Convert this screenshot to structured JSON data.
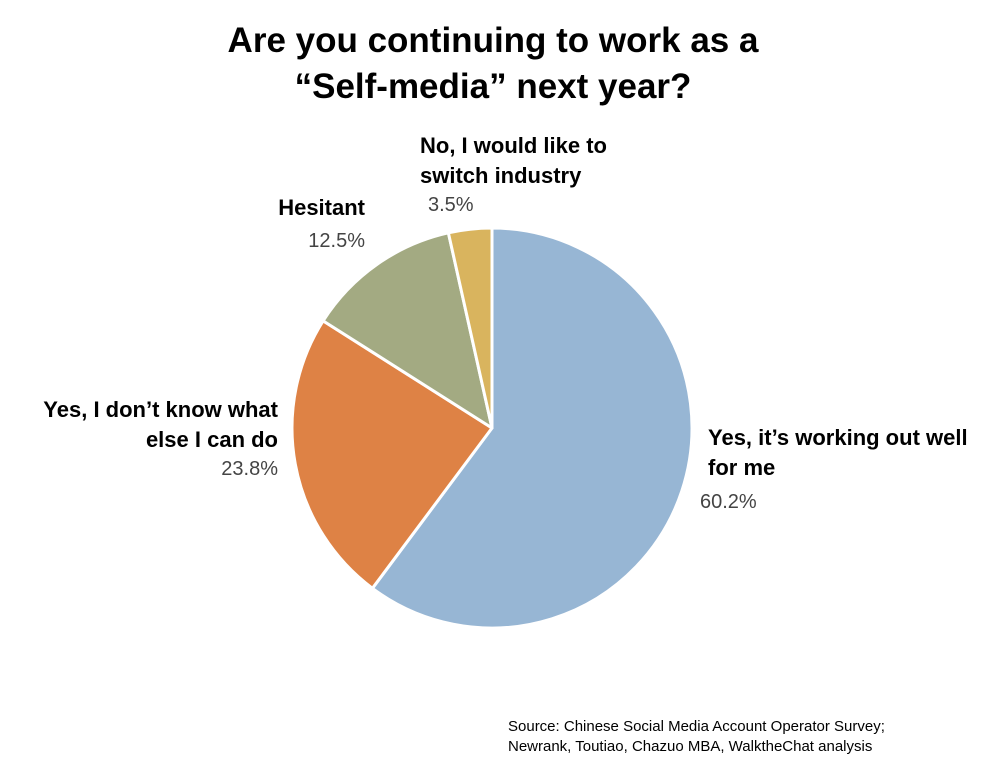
{
  "chart_data": {
    "type": "pie",
    "title": "Are you continuing to work as a “Self-media” next year?",
    "categories": [
      "Yes, it’s working out well for me",
      "Yes, I don’t know what else I can do",
      "Hesitant",
      "No, I would like to switch industry"
    ],
    "values": [
      60.2,
      23.8,
      12.5,
      3.5
    ],
    "value_labels": [
      "60.2%",
      "23.8%",
      "12.5%",
      "3.5%"
    ],
    "colors": [
      "#97b6d4",
      "#de8245",
      "#a3aa82",
      "#d9b45e"
    ],
    "source": "Source: Chinese Social Media Account Operator Survey; Newrank, Toutiao, Chazuo MBA, WalktheChat analysis"
  }
}
